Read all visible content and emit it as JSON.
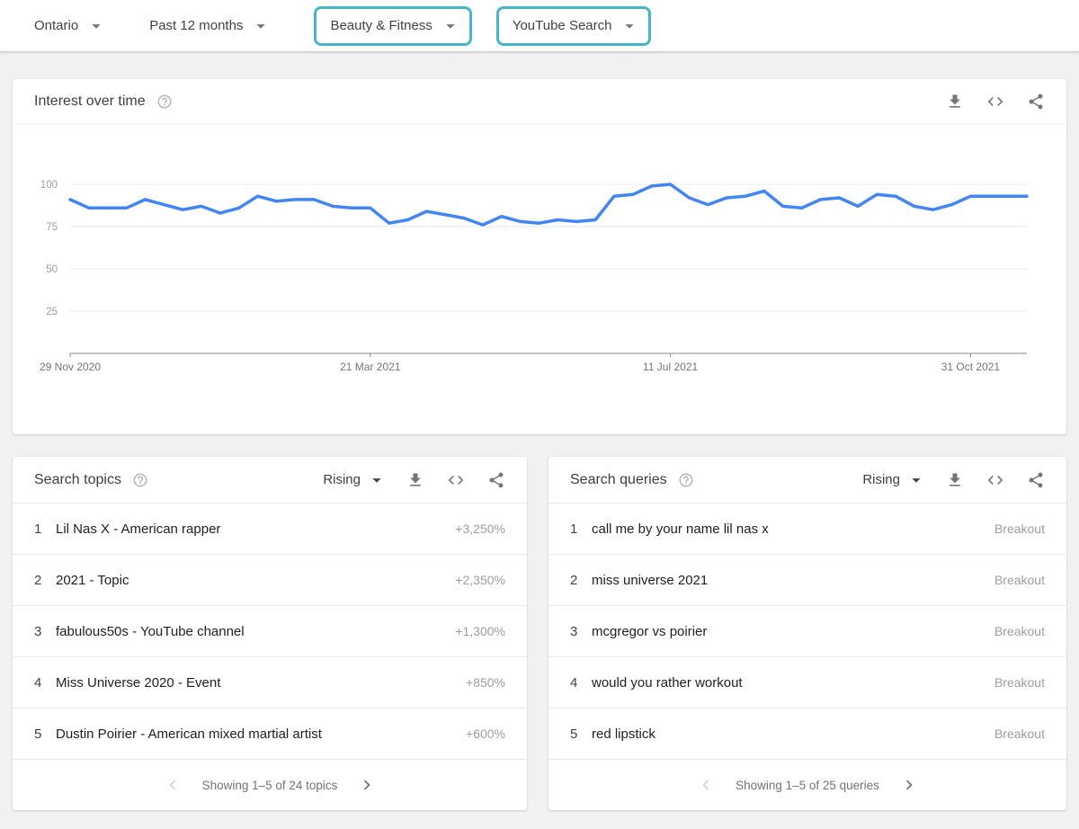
{
  "topbar": {
    "filters": [
      {
        "label": "Ontario",
        "highlighted": false
      },
      {
        "label": "Past 12 months",
        "highlighted": false
      },
      {
        "label": "Beauty & Fitness",
        "highlighted": true
      },
      {
        "label": "YouTube Search",
        "highlighted": true
      }
    ]
  },
  "colors": {
    "accent_teal": "#44b6c6",
    "line_blue": "#4285f4",
    "grid_gray": "#e8e8e8",
    "axis_gray": "#8a8a8a",
    "tick_text_gray": "#9e9e9e",
    "xlabel_gray": "#757575"
  },
  "icons": {
    "dropdown-caret-icon": "▾",
    "help-icon": "?",
    "download-icon": "⤓",
    "embed-icon": "<>",
    "share-icon": "share-nodes",
    "chevron-left-icon": "‹",
    "chevron-right-icon": "›"
  },
  "interest": {
    "title": "Interest over time"
  },
  "chart_data": {
    "type": "line",
    "title": "Interest over time",
    "x_description": "Weekly points from 29 Nov 2020 to late Nov 2021",
    "x_tick_labels": [
      "29 Nov 2020",
      "21 Mar 2021",
      "11 Jul 2021",
      "31 Oct 2021"
    ],
    "x_tick_indices": [
      0,
      16,
      32,
      48
    ],
    "y_ticks": [
      25,
      50,
      75,
      100
    ],
    "ylim": [
      0,
      100
    ],
    "grid": true,
    "legend_position": "none",
    "line_color": "#4285f4",
    "series": [
      {
        "name": "Beauty & Fitness – YouTube Search interest (Ontario)",
        "values": [
          91,
          86,
          86,
          86,
          91,
          88,
          85,
          87,
          83,
          86,
          93,
          90,
          91,
          91,
          87,
          86,
          86,
          77,
          79,
          84,
          82,
          80,
          76,
          81,
          78,
          77,
          79,
          78,
          79,
          93,
          94,
          99,
          100,
          92,
          88,
          92,
          93,
          96,
          87,
          86,
          91,
          92,
          87,
          94,
          93,
          87,
          85,
          88,
          93,
          93,
          93,
          93
        ]
      }
    ]
  },
  "topics": {
    "title": "Search topics",
    "sort": "Rising",
    "rows": [
      {
        "rank": "1",
        "label": "Lil Nas X - American rapper",
        "value": "+3,250%"
      },
      {
        "rank": "2",
        "label": "2021 - Topic",
        "value": "+2,350%"
      },
      {
        "rank": "3",
        "label": "fabulous50s - YouTube channel",
        "value": "+1,300%"
      },
      {
        "rank": "4",
        "label": "Miss Universe 2020 - Event",
        "value": "+850%"
      },
      {
        "rank": "5",
        "label": "Dustin Poirier - American mixed martial artist",
        "value": "+600%"
      }
    ],
    "pagination": "Showing 1–5 of 24 topics"
  },
  "queries": {
    "title": "Search queries",
    "sort": "Rising",
    "rows": [
      {
        "rank": "1",
        "label": "call me by your name lil nas x",
        "value": "Breakout"
      },
      {
        "rank": "2",
        "label": "miss universe 2021",
        "value": "Breakout"
      },
      {
        "rank": "3",
        "label": "mcgregor vs poirier",
        "value": "Breakout"
      },
      {
        "rank": "4",
        "label": "would you rather workout",
        "value": "Breakout"
      },
      {
        "rank": "5",
        "label": "red lipstick",
        "value": "Breakout"
      }
    ],
    "pagination": "Showing 1–5 of 25 queries"
  }
}
